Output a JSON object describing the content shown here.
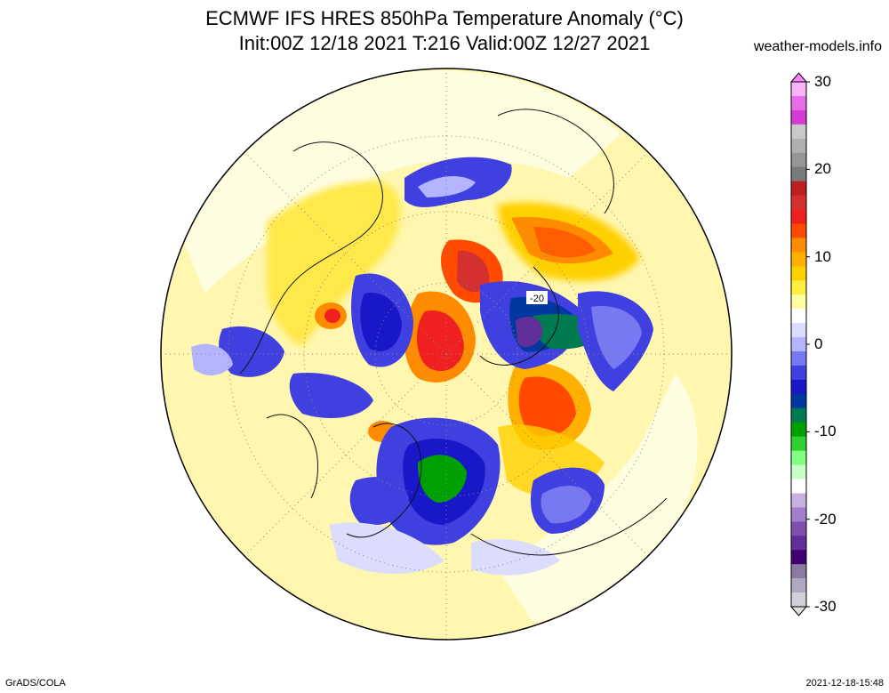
{
  "header": {
    "title_line1": "ECMWF IFS HRES 850hPa Temperature Anomaly (°C)",
    "title_line2": "Init:00Z 12/18 2021 T:216 Valid:00Z 12/27 2021",
    "site": "weather-models.info"
  },
  "map": {
    "projection": "north polar stereographic",
    "contour_label": "-20",
    "anomaly_blobs": [
      {
        "sign": "warm",
        "level": 12
      },
      {
        "sign": "warm",
        "level": 10
      },
      {
        "sign": "warm",
        "level": 8
      },
      {
        "sign": "warm",
        "level": 6
      },
      {
        "sign": "cold",
        "level": -8
      },
      {
        "sign": "cold",
        "level": -10
      },
      {
        "sign": "cold",
        "level": -18
      },
      {
        "sign": "cold",
        "level": -24
      }
    ]
  },
  "colorbar": {
    "tick_labels": [
      "30",
      "20",
      "10",
      "0",
      "-10",
      "-20",
      "-30"
    ],
    "colors": [
      "#f7b5f7",
      "#e86ce8",
      "#d63ad6",
      "#c9c9c9",
      "#b0b0b0",
      "#969696",
      "#7a7a7a",
      "#bd2020",
      "#d43030",
      "#f02020",
      "#ff4a00",
      "#ff8c00",
      "#ffb000",
      "#ffd000",
      "#ffee40",
      "#ffffa0",
      "#ffffff",
      "#dcdcff",
      "#b4b4ff",
      "#7878f0",
      "#4040e0",
      "#1818c8",
      "#0038a0",
      "#007a50",
      "#00a000",
      "#30d030",
      "#80ff80",
      "#c8ffc8",
      "#ffffff",
      "#c8b0e0",
      "#a080c8",
      "#8050b0",
      "#603098",
      "#400070",
      "#8a7aa0",
      "#b0a8c0",
      "#d0d0d8"
    ]
  },
  "footer": {
    "left": "GrADS/COLA",
    "right": "2021-12-18-15:48"
  }
}
